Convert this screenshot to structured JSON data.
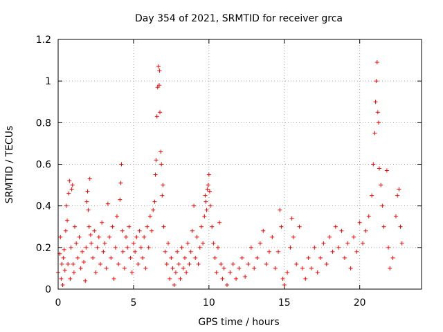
{
  "chart_data": {
    "type": "scatter",
    "title": "Day 354 of 2021, SRMTID for receiver grca",
    "xlabel": "GPS time / hours",
    "ylabel": "SRMTID / TECUs",
    "xlim": [
      0,
      24.1
    ],
    "ylim": [
      0,
      1.2
    ],
    "x_ticks": [
      "0",
      "5",
      "10",
      "15",
      "20"
    ],
    "x_tick_values": [
      0,
      5,
      10,
      15,
      20
    ],
    "y_ticks": [
      "0",
      "0.2",
      "0.4",
      "0.6",
      "0.8",
      "1",
      "1.2"
    ],
    "y_tick_values": [
      0,
      0.2,
      0.4,
      0.6,
      0.8,
      1.0,
      1.2
    ],
    "grid": true,
    "marker": "plus",
    "color": "#ff0000",
    "series": [
      {
        "name": "grca",
        "points": [
          [
            0.0,
            0.08
          ],
          [
            0.1,
            0.17
          ],
          [
            0.15,
            0.25
          ],
          [
            0.2,
            0.05
          ],
          [
            0.25,
            0.12
          ],
          [
            0.3,
            0.02
          ],
          [
            0.35,
            0.15
          ],
          [
            0.4,
            0.19
          ],
          [
            0.45,
            0.09
          ],
          [
            0.5,
            0.28
          ],
          [
            0.55,
            0.4
          ],
          [
            0.6,
            0.33
          ],
          [
            0.65,
            0.12
          ],
          [
            0.7,
            0.46
          ],
          [
            0.75,
            0.52
          ],
          [
            0.8,
            0.05
          ],
          [
            0.85,
            0.2
          ],
          [
            0.9,
            0.48
          ],
          [
            0.95,
            0.5
          ],
          [
            1.0,
            0.12
          ],
          [
            1.05,
            0.08
          ],
          [
            1.1,
            0.3
          ],
          [
            1.2,
            0.22
          ],
          [
            1.3,
            0.15
          ],
          [
            1.4,
            0.25
          ],
          [
            1.5,
            0.1
          ],
          [
            1.6,
            0.18
          ],
          [
            1.7,
            0.13
          ],
          [
            1.8,
            0.04
          ],
          [
            1.85,
            0.2
          ],
          [
            1.9,
            0.42
          ],
          [
            1.95,
            0.47
          ],
          [
            2.0,
            0.38
          ],
          [
            2.05,
            0.3
          ],
          [
            2.1,
            0.53
          ],
          [
            2.15,
            0.26
          ],
          [
            2.2,
            0.22
          ],
          [
            2.3,
            0.15
          ],
          [
            2.4,
            0.28
          ],
          [
            2.5,
            0.08
          ],
          [
            2.6,
            0.2
          ],
          [
            2.7,
            0.25
          ],
          [
            2.8,
            0.12
          ],
          [
            2.9,
            0.32
          ],
          [
            3.0,
            0.18
          ],
          [
            3.1,
            0.22
          ],
          [
            3.2,
            0.1
          ],
          [
            3.3,
            0.41
          ],
          [
            3.4,
            0.25
          ],
          [
            3.5,
            0.15
          ],
          [
            3.6,
            0.3
          ],
          [
            3.7,
            0.05
          ],
          [
            3.8,
            0.2
          ],
          [
            3.9,
            0.35
          ],
          [
            4.0,
            0.12
          ],
          [
            4.1,
            0.43
          ],
          [
            4.15,
            0.51
          ],
          [
            4.2,
            0.6
          ],
          [
            4.25,
            0.28
          ],
          [
            4.3,
            0.18
          ],
          [
            4.4,
            0.1
          ],
          [
            4.5,
            0.25
          ],
          [
            4.6,
            0.2
          ],
          [
            4.7,
            0.3
          ],
          [
            4.8,
            0.15
          ],
          [
            4.9,
            0.08
          ],
          [
            5.0,
            0.22
          ],
          [
            5.1,
            0.18
          ],
          [
            5.2,
            0.25
          ],
          [
            5.3,
            0.12
          ],
          [
            5.4,
            0.28
          ],
          [
            5.5,
            0.2
          ],
          [
            5.6,
            0.15
          ],
          [
            5.7,
            0.25
          ],
          [
            5.8,
            0.1
          ],
          [
            5.9,
            0.3
          ],
          [
            6.0,
            0.2
          ],
          [
            6.1,
            0.35
          ],
          [
            6.2,
            0.28
          ],
          [
            6.3,
            0.38
          ],
          [
            6.4,
            0.42
          ],
          [
            6.45,
            0.55
          ],
          [
            6.5,
            0.62
          ],
          [
            6.55,
            0.83
          ],
          [
            6.6,
            0.97
          ],
          [
            6.65,
            1.07
          ],
          [
            6.7,
            0.98
          ],
          [
            6.72,
            1.05
          ],
          [
            6.75,
            0.85
          ],
          [
            6.8,
            0.66
          ],
          [
            6.85,
            0.6
          ],
          [
            6.9,
            0.45
          ],
          [
            6.95,
            0.5
          ],
          [
            7.0,
            0.3
          ],
          [
            7.1,
            0.18
          ],
          [
            7.2,
            0.12
          ],
          [
            7.3,
            0.22
          ],
          [
            7.4,
            0.05
          ],
          [
            7.5,
            0.15
          ],
          [
            7.6,
            0.1
          ],
          [
            7.7,
            0.02
          ],
          [
            7.8,
            0.08
          ],
          [
            7.9,
            0.18
          ],
          [
            8.0,
            0.12
          ],
          [
            8.1,
            0.05
          ],
          [
            8.2,
            0.2
          ],
          [
            8.3,
            0.1
          ],
          [
            8.4,
            0.15
          ],
          [
            8.5,
            0.08
          ],
          [
            8.6,
            0.22
          ],
          [
            8.7,
            0.12
          ],
          [
            8.8,
            0.18
          ],
          [
            8.9,
            0.28
          ],
          [
            9.0,
            0.4
          ],
          [
            9.1,
            0.15
          ],
          [
            9.2,
            0.25
          ],
          [
            9.3,
            0.12
          ],
          [
            9.4,
            0.2
          ],
          [
            9.5,
            0.3
          ],
          [
            9.6,
            0.22
          ],
          [
            9.7,
            0.35
          ],
          [
            9.75,
            0.45
          ],
          [
            9.8,
            0.42
          ],
          [
            9.85,
            0.38
          ],
          [
            9.9,
            0.48
          ],
          [
            9.95,
            0.5
          ],
          [
            10.0,
            0.55
          ],
          [
            10.05,
            0.47
          ],
          [
            10.1,
            0.4
          ],
          [
            10.2,
            0.3
          ],
          [
            10.3,
            0.22
          ],
          [
            10.4,
            0.15
          ],
          [
            10.5,
            0.08
          ],
          [
            10.6,
            0.2
          ],
          [
            10.7,
            0.32
          ],
          [
            10.8,
            0.12
          ],
          [
            10.9,
            0.05
          ],
          [
            11.0,
            0.1
          ],
          [
            11.2,
            0.02
          ],
          [
            11.4,
            0.08
          ],
          [
            11.6,
            0.12
          ],
          [
            11.8,
            0.05
          ],
          [
            12.0,
            0.1
          ],
          [
            12.2,
            0.15
          ],
          [
            12.4,
            0.06
          ],
          [
            12.6,
            0.12
          ],
          [
            12.8,
            0.2
          ],
          [
            13.0,
            0.1
          ],
          [
            13.2,
            0.15
          ],
          [
            13.4,
            0.22
          ],
          [
            13.6,
            0.28
          ],
          [
            13.8,
            0.12
          ],
          [
            14.0,
            0.18
          ],
          [
            14.2,
            0.25
          ],
          [
            14.4,
            0.1
          ],
          [
            14.6,
            0.18
          ],
          [
            14.7,
            0.38
          ],
          [
            14.8,
            0.3
          ],
          [
            14.9,
            0.05
          ],
          [
            15.0,
            0.02
          ],
          [
            15.2,
            0.08
          ],
          [
            15.4,
            0.2
          ],
          [
            15.5,
            0.34
          ],
          [
            15.6,
            0.25
          ],
          [
            15.8,
            0.12
          ],
          [
            16.0,
            0.3
          ],
          [
            16.2,
            0.1
          ],
          [
            16.4,
            0.05
          ],
          [
            16.6,
            0.15
          ],
          [
            16.8,
            0.1
          ],
          [
            17.0,
            0.2
          ],
          [
            17.2,
            0.08
          ],
          [
            17.4,
            0.15
          ],
          [
            17.6,
            0.22
          ],
          [
            17.8,
            0.12
          ],
          [
            18.0,
            0.25
          ],
          [
            18.2,
            0.18
          ],
          [
            18.4,
            0.3
          ],
          [
            18.6,
            0.2
          ],
          [
            18.8,
            0.28
          ],
          [
            19.0,
            0.15
          ],
          [
            19.2,
            0.22
          ],
          [
            19.4,
            0.1
          ],
          [
            19.6,
            0.25
          ],
          [
            19.8,
            0.18
          ],
          [
            20.0,
            0.32
          ],
          [
            20.2,
            0.22
          ],
          [
            20.4,
            0.28
          ],
          [
            20.6,
            0.35
          ],
          [
            20.8,
            0.45
          ],
          [
            20.9,
            0.6
          ],
          [
            21.0,
            0.75
          ],
          [
            21.05,
            0.9
          ],
          [
            21.1,
            1.0
          ],
          [
            21.15,
            1.09
          ],
          [
            21.2,
            0.85
          ],
          [
            21.25,
            0.8
          ],
          [
            21.3,
            0.58
          ],
          [
            21.4,
            0.5
          ],
          [
            21.5,
            0.4
          ],
          [
            21.6,
            0.3
          ],
          [
            21.8,
            0.57
          ],
          [
            21.9,
            0.2
          ],
          [
            22.0,
            0.1
          ],
          [
            22.2,
            0.15
          ],
          [
            22.4,
            0.35
          ],
          [
            22.5,
            0.45
          ],
          [
            22.6,
            0.48
          ],
          [
            22.7,
            0.3
          ],
          [
            22.8,
            0.22
          ]
        ]
      }
    ]
  }
}
